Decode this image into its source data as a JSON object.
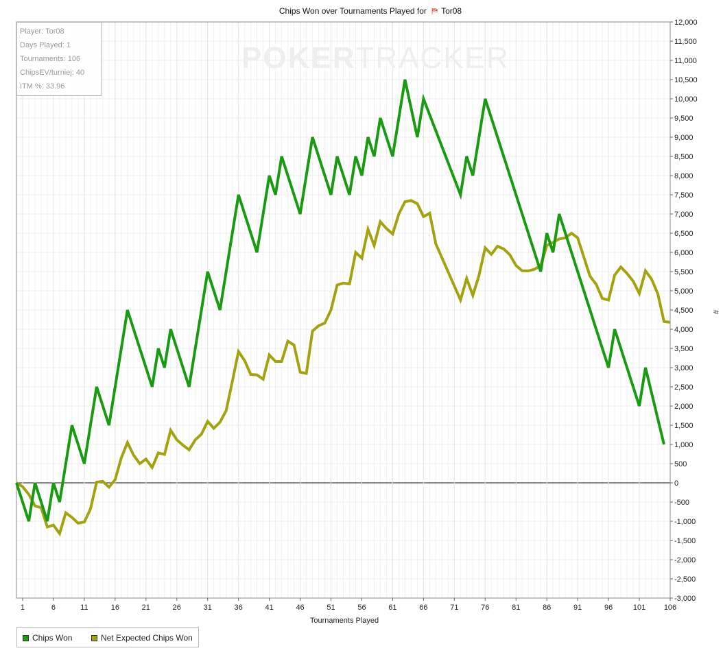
{
  "chart_data": {
    "type": "line",
    "title_prefix": "Chips Won over Tournaments Played for",
    "title_player": "Tor08",
    "xlabel": "Tournaments Played",
    "ylabel": "#",
    "xlim": [
      0,
      106
    ],
    "ylim": [
      -3000,
      12000
    ],
    "x_ticks": [
      "1",
      "6",
      "11",
      "16",
      "21",
      "26",
      "31",
      "36",
      "41",
      "46",
      "51",
      "56",
      "61",
      "66",
      "71",
      "76",
      "81",
      "86",
      "91",
      "96",
      "101",
      "106"
    ],
    "y_ticks": [
      "12,000",
      "11,500",
      "11,000",
      "10,500",
      "10,000",
      "9,500",
      "9,000",
      "8,500",
      "8,000",
      "7,500",
      "7,000",
      "6,500",
      "6,000",
      "5,500",
      "5,000",
      "4,500",
      "4,000",
      "3,500",
      "3,000",
      "2,500",
      "2,000",
      "1,500",
      "1,000",
      "500",
      "0",
      "-500",
      "-1,000",
      "-1,500",
      "-2,000",
      "-2,500",
      "-3,000"
    ],
    "grid": true,
    "legend_position": "bottom-left",
    "series": [
      {
        "name": "Chips Won",
        "color": "#1a9a12",
        "points": [
          [
            0,
            0
          ],
          [
            2,
            -1000
          ],
          [
            3,
            0
          ],
          [
            5,
            -1000
          ],
          [
            6,
            0
          ],
          [
            7,
            -500
          ],
          [
            9,
            1500
          ],
          [
            11,
            500
          ],
          [
            13,
            2500
          ],
          [
            15,
            1500
          ],
          [
            18,
            4500
          ],
          [
            22,
            2500
          ],
          [
            23,
            3500
          ],
          [
            24,
            3000
          ],
          [
            25,
            4000
          ],
          [
            28,
            2500
          ],
          [
            31,
            5500
          ],
          [
            33,
            4500
          ],
          [
            36,
            7500
          ],
          [
            39,
            6000
          ],
          [
            41,
            8000
          ],
          [
            42,
            7500
          ],
          [
            43,
            8500
          ],
          [
            46,
            7000
          ],
          [
            48,
            9000
          ],
          [
            51,
            7500
          ],
          [
            52,
            8500
          ],
          [
            54,
            7500
          ],
          [
            55,
            8500
          ],
          [
            56,
            8000
          ],
          [
            57,
            9000
          ],
          [
            58,
            8500
          ],
          [
            59,
            9500
          ],
          [
            61,
            8500
          ],
          [
            63,
            10500
          ],
          [
            65,
            9000
          ],
          [
            66,
            10000
          ],
          [
            72,
            7500
          ],
          [
            73,
            8500
          ],
          [
            74,
            8000
          ],
          [
            76,
            10000
          ],
          [
            85,
            5500
          ],
          [
            86,
            6500
          ],
          [
            87,
            6000
          ],
          [
            88,
            7000
          ],
          [
            96,
            3000
          ],
          [
            97,
            4000
          ],
          [
            101,
            2000
          ],
          [
            102,
            3000
          ],
          [
            105,
            1000
          ]
        ]
      },
      {
        "name": "Net Expected Chips Won",
        "color": "#a3a312",
        "points": [
          [
            0,
            0
          ],
          [
            1,
            -100
          ],
          [
            2,
            -300
          ],
          [
            3,
            -600
          ],
          [
            4,
            -650
          ],
          [
            5,
            -1150
          ],
          [
            6,
            -1100
          ],
          [
            7,
            -1320
          ],
          [
            8,
            -780
          ],
          [
            9,
            -900
          ],
          [
            10,
            -1050
          ],
          [
            11,
            -1020
          ],
          [
            12,
            -680
          ],
          [
            13,
            20
          ],
          [
            14,
            40
          ],
          [
            15,
            -110
          ],
          [
            16,
            80
          ],
          [
            17,
            650
          ],
          [
            18,
            1050
          ],
          [
            19,
            720
          ],
          [
            20,
            500
          ],
          [
            21,
            620
          ],
          [
            22,
            400
          ],
          [
            23,
            780
          ],
          [
            24,
            740
          ],
          [
            25,
            1370
          ],
          [
            26,
            1120
          ],
          [
            27,
            980
          ],
          [
            28,
            860
          ],
          [
            29,
            1120
          ],
          [
            30,
            1270
          ],
          [
            31,
            1600
          ],
          [
            32,
            1420
          ],
          [
            33,
            1580
          ],
          [
            34,
            1880
          ],
          [
            35,
            2640
          ],
          [
            36,
            3420
          ],
          [
            37,
            3180
          ],
          [
            38,
            2820
          ],
          [
            39,
            2810
          ],
          [
            40,
            2700
          ],
          [
            41,
            3330
          ],
          [
            42,
            3160
          ],
          [
            43,
            3160
          ],
          [
            44,
            3690
          ],
          [
            45,
            3590
          ],
          [
            46,
            2880
          ],
          [
            47,
            2850
          ],
          [
            48,
            3950
          ],
          [
            49,
            4090
          ],
          [
            50,
            4160
          ],
          [
            51,
            4500
          ],
          [
            52,
            5150
          ],
          [
            53,
            5200
          ],
          [
            54,
            5180
          ],
          [
            55,
            6000
          ],
          [
            56,
            5850
          ],
          [
            57,
            6600
          ],
          [
            58,
            6180
          ],
          [
            59,
            6800
          ],
          [
            60,
            6620
          ],
          [
            61,
            6480
          ],
          [
            62,
            7000
          ],
          [
            63,
            7320
          ],
          [
            64,
            7350
          ],
          [
            65,
            7270
          ],
          [
            66,
            6930
          ],
          [
            67,
            7020
          ],
          [
            68,
            6220
          ],
          [
            72,
            4760
          ],
          [
            73,
            5320
          ],
          [
            74,
            4880
          ],
          [
            75,
            5400
          ],
          [
            76,
            6120
          ],
          [
            77,
            5950
          ],
          [
            78,
            6160
          ],
          [
            79,
            6090
          ],
          [
            80,
            5940
          ],
          [
            81,
            5660
          ],
          [
            82,
            5520
          ],
          [
            83,
            5520
          ],
          [
            84,
            5560
          ],
          [
            85,
            5660
          ],
          [
            86,
            6180
          ],
          [
            87,
            6260
          ],
          [
            88,
            6350
          ],
          [
            89,
            6380
          ],
          [
            90,
            6500
          ],
          [
            91,
            6380
          ],
          [
            92,
            5880
          ],
          [
            93,
            5380
          ],
          [
            94,
            5170
          ],
          [
            95,
            4800
          ],
          [
            96,
            4760
          ],
          [
            97,
            5410
          ],
          [
            98,
            5620
          ],
          [
            99,
            5450
          ],
          [
            100,
            5250
          ],
          [
            101,
            4930
          ],
          [
            102,
            5520
          ],
          [
            103,
            5300
          ],
          [
            104,
            4920
          ],
          [
            105,
            4200
          ],
          [
            106,
            4180
          ]
        ]
      }
    ]
  },
  "info": {
    "player": "Player: Tor08",
    "days": "Days Played: 1",
    "tournaments": "Tournaments: 106",
    "chipsev": "ChipsEV/turniej: 40",
    "itm": "ITM %: 33.96"
  },
  "watermark": {
    "part1": "POKER",
    "part2": "TRACKER"
  },
  "legend": {
    "item1": "Chips Won",
    "item2": "Net Expected Chips Won"
  }
}
